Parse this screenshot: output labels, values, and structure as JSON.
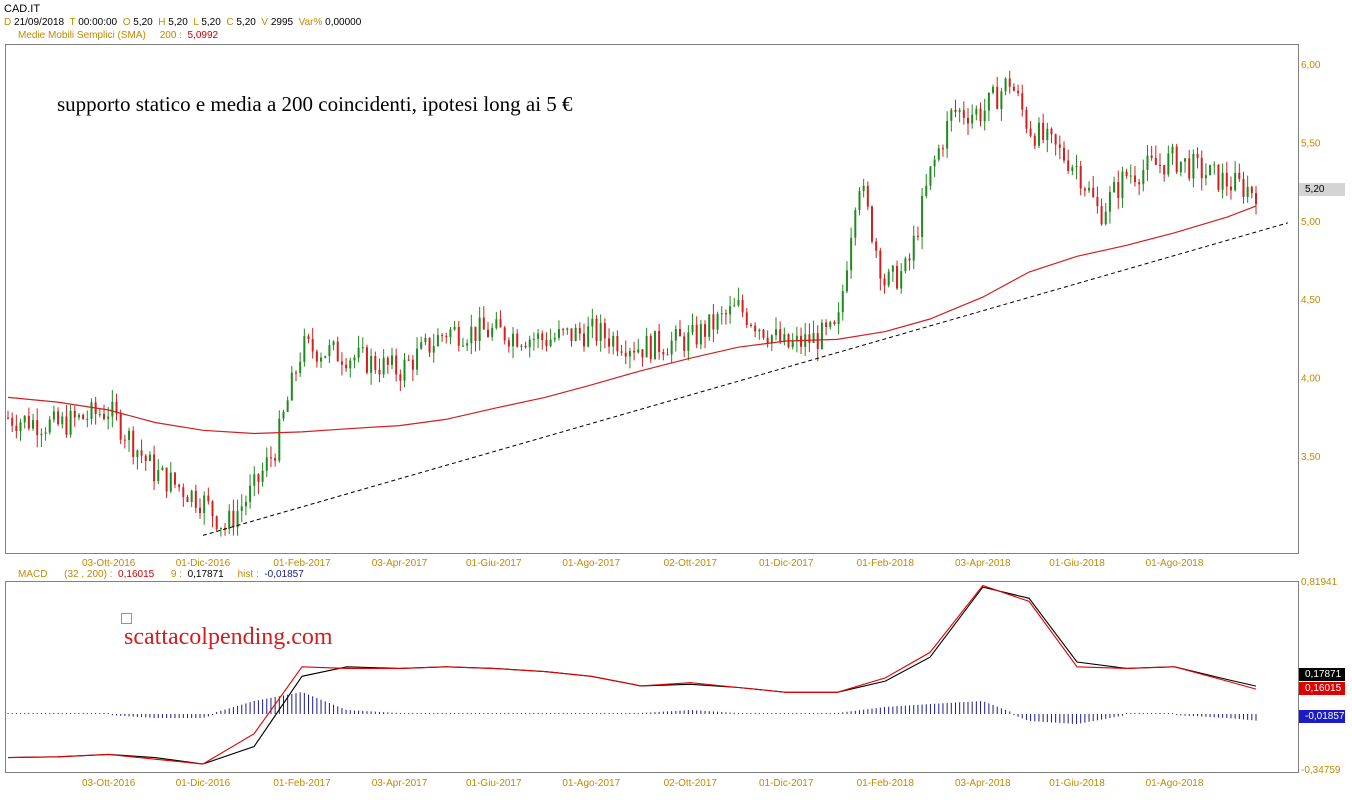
{
  "header": {
    "symbol": "CAD.IT",
    "d_key": "D",
    "d_val": "21/09/2018",
    "t_key": "T",
    "t_val": "00:00:00",
    "o_key": "O",
    "o_val": "5,20",
    "h_key": "H",
    "h_val": "5,20",
    "l_key": "L",
    "l_val": "5,20",
    "c_key": "C",
    "c_val": "5,20",
    "vol_key": "V",
    "vol_val": "2995",
    "var_key": "Var%",
    "var_val": "0,00000",
    "sma_label": "Medie Mobili Semplici (SMA)",
    "sma_period": "200 :",
    "sma_value": "5,0992"
  },
  "price_panel": {
    "annotation": "supporto statico e media a 200 coincidenti, ipotesi long ai 5 €",
    "last_price_tag": "5,20",
    "y_ticks": [
      "6,00",
      "5,50",
      "5,00",
      "4,50",
      "4,00",
      "3,50"
    ],
    "date_labels": [
      "03-Ott-2016",
      "01-Dic-2016",
      "01-Feb-2017",
      "03-Apr-2017",
      "01-Giu-2017",
      "01-Ago-2017",
      "02-Ott-2017",
      "01-Dic-2017",
      "01-Feb-2018",
      "03-Apr-2018",
      "01-Giu-2018",
      "01-Ago-2018"
    ]
  },
  "macd_panel": {
    "label": "MACD",
    "params": "(32 , 200) :",
    "macd_value": "0,16015",
    "signal_period": "9 :",
    "signal_value": "0,17871",
    "hist_label": "hist :",
    "hist_value": "-0,01857",
    "y_max": "0,81941",
    "y_min": "-0,34759",
    "tag_signal": "0,17871",
    "tag_macd": "0,16015",
    "tag_hist": "-0,01857",
    "watermark": "scattacolpending.com",
    "date_labels": [
      "03-Ott-2016",
      "01-Dic-2016",
      "01-Feb-2017",
      "03-Apr-2017",
      "01-Giu-2017",
      "01-Ago-2017",
      "02-Ott-2017",
      "01-Dic-2017",
      "01-Feb-2018",
      "03-Apr-2018",
      "01-Giu-2018",
      "01-Ago-2018"
    ]
  },
  "colors": {
    "bullish": "#1f8a1f",
    "bearish": "#d21f1f",
    "sma": "#d21f1f",
    "trendline": "#000000",
    "macd_line": "#e00000",
    "signal_line": "#000000",
    "histogram": "#1a1a8c",
    "axis_text": "#c08a00"
  },
  "chart_data": [
    {
      "type": "line",
      "title": "CAD.IT",
      "ylim": [
        2.9,
        6.1
      ],
      "series": [
        {
          "name": "Medie Mobili Semplici (SMA) 200",
          "x": [
            "2016-08-01",
            "2016-09-01",
            "2016-10-03",
            "2016-11-01",
            "2016-12-01",
            "2017-01-02",
            "2017-02-01",
            "2017-03-01",
            "2017-04-03",
            "2017-05-02",
            "2017-06-01",
            "2017-07-03",
            "2017-08-01",
            "2017-09-01",
            "2017-10-02",
            "2017-11-01",
            "2017-12-01",
            "2018-01-02",
            "2018-02-01",
            "2018-03-01",
            "2018-04-03",
            "2018-05-02",
            "2018-06-01",
            "2018-07-02",
            "2018-08-01",
            "2018-09-03",
            "2018-09-21"
          ],
          "values": [
            3.88,
            3.85,
            3.8,
            3.72,
            3.67,
            3.65,
            3.66,
            3.68,
            3.7,
            3.74,
            3.81,
            3.88,
            3.96,
            4.05,
            4.13,
            4.2,
            4.24,
            4.25,
            4.3,
            4.38,
            4.52,
            4.68,
            4.78,
            4.85,
            4.93,
            5.03,
            5.1
          ]
        },
        {
          "name": "",
          "x": [
            "2016-12-01",
            "2018-09-21"
          ],
          "values": [
            3.0,
            5.07
          ]
        },
        {
          "name": "",
          "x": [
            "2016-08-01",
            "2016-09-01",
            "2016-10-03",
            "2016-11-01",
            "2016-12-01",
            "2016-12-15",
            "2017-01-02",
            "2017-01-15",
            "2017-02-01",
            "2017-03-01",
            "2017-04-03",
            "2017-05-02",
            "2017-06-01",
            "2017-07-03",
            "2017-08-01",
            "2017-09-01",
            "2017-10-02",
            "2017-11-01",
            "2017-12-01",
            "2018-01-02",
            "2018-01-15",
            "2018-02-01",
            "2018-02-15",
            "2018-03-01",
            "2018-03-15",
            "2018-04-03",
            "2018-04-20",
            "2018-05-02",
            "2018-06-01",
            "2018-06-15",
            "2018-07-02",
            "2018-08-01",
            "2018-09-03",
            "2018-09-21"
          ],
          "values": [
            3.75,
            3.7,
            3.8,
            3.4,
            3.22,
            3.05,
            3.3,
            3.55,
            4.2,
            4.15,
            4.05,
            4.3,
            4.3,
            4.25,
            4.3,
            4.2,
            4.25,
            4.45,
            4.2,
            4.3,
            5.3,
            4.6,
            4.7,
            5.3,
            5.7,
            5.7,
            5.9,
            5.6,
            5.35,
            5.05,
            5.3,
            5.4,
            5.25,
            5.2
          ]
        }
      ]
    },
    {
      "type": "line",
      "title": "MACD",
      "ylim": [
        -0.34759,
        0.81941
      ],
      "series": [
        {
          "name": "MACD (32 , 200)",
          "x": [
            "2016-08-01",
            "2016-09-01",
            "2016-10-03",
            "2016-11-01",
            "2016-12-01",
            "2017-01-02",
            "2017-02-01",
            "2017-03-01",
            "2017-04-03",
            "2017-05-02",
            "2017-06-01",
            "2017-07-03",
            "2017-08-01",
            "2017-09-01",
            "2017-10-02",
            "2017-11-01",
            "2017-12-01",
            "2018-01-02",
            "2018-02-01",
            "2018-03-01",
            "2018-04-03",
            "2018-05-02",
            "2018-06-01",
            "2018-07-02",
            "2018-08-01",
            "2018-09-03",
            "2018-09-21"
          ],
          "values": [
            -0.27,
            -0.265,
            -0.25,
            -0.28,
            -0.31,
            -0.12,
            0.3,
            0.29,
            0.29,
            0.3,
            0.29,
            0.27,
            0.24,
            0.18,
            0.2,
            0.17,
            0.14,
            0.14,
            0.23,
            0.39,
            0.81,
            0.71,
            0.3,
            0.29,
            0.3,
            0.21,
            0.16015
          ]
        },
        {
          "name": "9",
          "x": [
            "2016-08-01",
            "2016-09-01",
            "2016-10-03",
            "2016-11-01",
            "2016-12-01",
            "2017-01-02",
            "2017-02-01",
            "2017-03-01",
            "2017-04-03",
            "2017-05-02",
            "2017-06-01",
            "2017-07-03",
            "2017-08-01",
            "2017-09-01",
            "2017-10-02",
            "2017-11-01",
            "2017-12-01",
            "2018-01-02",
            "2018-02-01",
            "2018-03-01",
            "2018-04-03",
            "2018-05-02",
            "2018-06-01",
            "2018-07-02",
            "2018-08-01",
            "2018-09-03",
            "2018-09-21"
          ],
          "values": [
            -0.27,
            -0.265,
            -0.25,
            -0.27,
            -0.31,
            -0.2,
            0.24,
            0.3,
            0.29,
            0.3,
            0.29,
            0.27,
            0.24,
            0.18,
            0.19,
            0.17,
            0.14,
            0.14,
            0.21,
            0.36,
            0.8,
            0.73,
            0.33,
            0.29,
            0.3,
            0.22,
            0.17871
          ]
        },
        {
          "name": "hist",
          "x": [
            "2016-08-01",
            "2016-09-01",
            "2016-10-03",
            "2016-11-01",
            "2016-12-01",
            "2017-01-02",
            "2017-02-01",
            "2017-03-01",
            "2017-04-03",
            "2017-05-02",
            "2017-06-01",
            "2017-07-03",
            "2017-08-01",
            "2017-09-01",
            "2017-10-02",
            "2017-11-01",
            "2017-12-01",
            "2018-01-02",
            "2018-02-01",
            "2018-03-01",
            "2018-04-03",
            "2018-05-02",
            "2018-06-01",
            "2018-07-02",
            "2018-08-01",
            "2018-09-03",
            "2018-09-21"
          ],
          "values": [
            0.0,
            0.0,
            0.0,
            -0.01,
            -0.01,
            0.04,
            0.07,
            0.01,
            0.0,
            0.0,
            0.0,
            0.0,
            0.0,
            0.0,
            0.01,
            0.0,
            0.0,
            0.0,
            0.02,
            0.03,
            0.04,
            -0.02,
            -0.03,
            0.0,
            0.0,
            -0.01,
            -0.01857
          ]
        }
      ]
    }
  ]
}
